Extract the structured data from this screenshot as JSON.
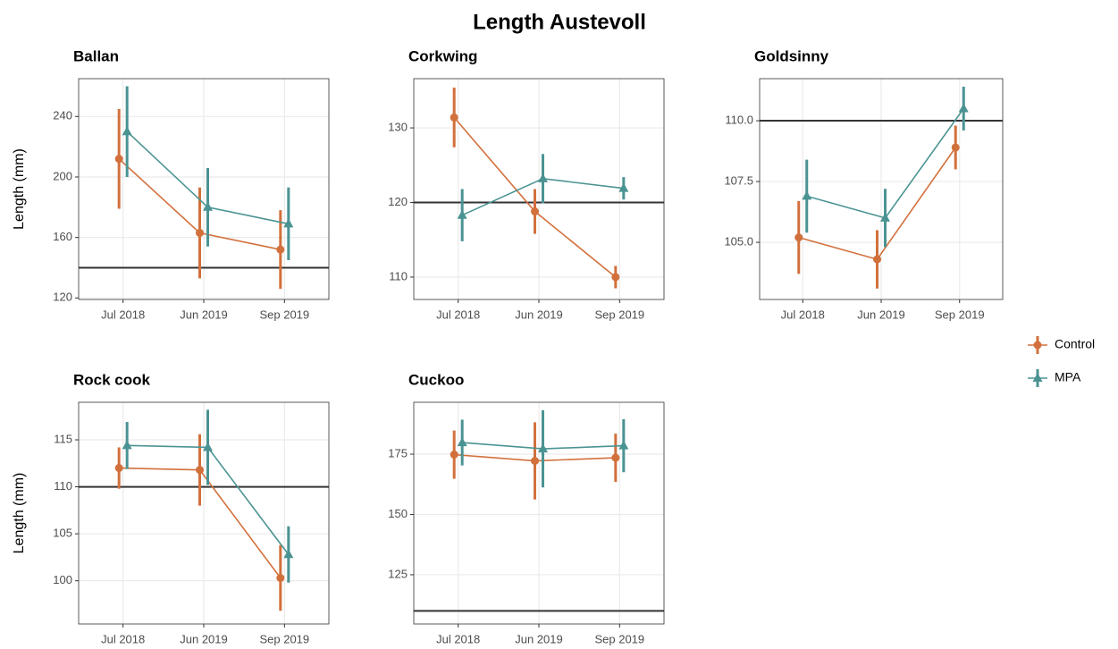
{
  "title": "Length Austevoll",
  "chart_data": [
    {
      "type": "line",
      "title": "Ballan",
      "ylabel": "Length (mm)",
      "grid": true,
      "categories": [
        "Jul 2018",
        "Jun 2019",
        "Sep 2019"
      ],
      "ylim": [
        119,
        265
      ],
      "yticks": [
        120,
        160,
        200,
        240
      ],
      "hline": 140,
      "series": [
        {
          "name": "Control",
          "color": "#d2703c",
          "marker": "circle",
          "values": [
            212,
            163,
            152
          ],
          "errors": [
            33,
            30,
            26
          ]
        },
        {
          "name": "MPA",
          "color": "#4b9393",
          "marker": "triangle",
          "values": [
            230,
            180,
            169
          ],
          "errors": [
            30,
            26,
            24
          ]
        }
      ]
    },
    {
      "type": "line",
      "title": "Corkwing",
      "grid": true,
      "categories": [
        "Jul 2018",
        "Jun 2019",
        "Sep 2019"
      ],
      "ylim": [
        107,
        136.6
      ],
      "yticks": [
        110,
        120,
        130
      ],
      "hline": 120,
      "series": [
        {
          "name": "Control",
          "color": "#d2703c",
          "marker": "circle",
          "values": [
            131.4,
            118.8,
            110
          ],
          "errors": [
            4,
            3,
            1.5
          ]
        },
        {
          "name": "MPA",
          "color": "#4b9393",
          "marker": "triangle",
          "values": [
            118.3,
            123.2,
            121.9
          ],
          "errors": [
            3.5,
            3.3,
            1.5
          ]
        }
      ]
    },
    {
      "type": "line",
      "title": "Goldsinny",
      "grid": true,
      "categories": [
        "Jul 2018",
        "Jun 2019",
        "Sep 2019"
      ],
      "ylim": [
        102.65,
        111.73
      ],
      "yticks": [
        {
          "value": 105,
          "label": "105.0"
        },
        {
          "value": 107.5,
          "label": "107.5"
        },
        {
          "value": 110,
          "label": "110.0"
        }
      ],
      "hline": 110,
      "series": [
        {
          "name": "Control",
          "color": "#d2703c",
          "marker": "circle",
          "values": [
            105.2,
            104.3,
            108.9
          ],
          "errors": [
            1.5,
            1.2,
            0.9
          ]
        },
        {
          "name": "MPA",
          "color": "#4b9393",
          "marker": "triangle",
          "values": [
            106.9,
            106.0,
            110.5
          ],
          "errors": [
            1.5,
            1.2,
            0.9
          ]
        }
      ]
    },
    {
      "type": "line",
      "title": "Rock cook",
      "ylabel": "Length (mm)",
      "grid": true,
      "categories": [
        "Jul 2018",
        "Jun 2019",
        "Sep 2019"
      ],
      "ylim": [
        95.4,
        119
      ],
      "yticks": [
        100,
        105,
        110,
        115
      ],
      "hline": 110,
      "series": [
        {
          "name": "Control",
          "color": "#d2703c",
          "marker": "circle",
          "values": [
            112,
            111.8,
            100.3
          ],
          "errors": [
            2.2,
            3.8,
            3.5
          ]
        },
        {
          "name": "MPA",
          "color": "#4b9393",
          "marker": "triangle",
          "values": [
            114.4,
            114.2,
            102.8
          ],
          "errors": [
            2.5,
            4,
            3
          ]
        }
      ]
    },
    {
      "type": "line",
      "title": "Cuckoo",
      "grid": true,
      "categories": [
        "Jul 2018",
        "Jun 2019",
        "Sep 2019"
      ],
      "ylim": [
        104.6,
        196.5
      ],
      "yticks": [
        125,
        150,
        175
      ],
      "hline": 110,
      "series": [
        {
          "name": "Control",
          "color": "#d2703c",
          "marker": "circle",
          "values": [
            174.8,
            172.2,
            173.5
          ],
          "errors": [
            10,
            16,
            10
          ]
        },
        {
          "name": "MPA",
          "color": "#4b9393",
          "marker": "triangle",
          "values": [
            179.8,
            177.2,
            178.5
          ],
          "errors": [
            9.5,
            16,
            11
          ]
        }
      ]
    }
  ]
}
